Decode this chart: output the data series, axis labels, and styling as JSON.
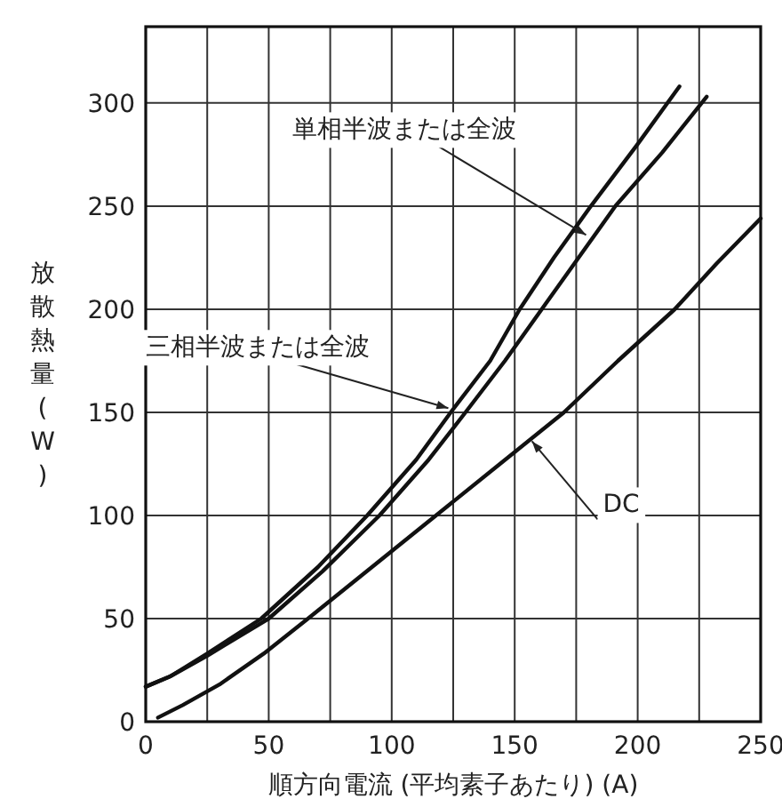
{
  "chart_data": {
    "type": "line",
    "xlabel": "順方向電流 (平均素子あたり) (A)",
    "ylabel": "放散熱量(W)",
    "xlim": [
      0,
      250
    ],
    "ylim": [
      0,
      337
    ],
    "xticks": [
      0,
      {
        "value": 25,
        "label": null
      },
      50,
      {
        "value": 75,
        "label": null
      },
      100,
      {
        "value": 125,
        "label": null
      },
      150,
      {
        "value": 175,
        "label": null
      },
      200,
      {
        "value": 225,
        "label": null
      },
      250
    ],
    "yticks": [
      0,
      50,
      100,
      150,
      200,
      250,
      300
    ],
    "grid": true,
    "series": [
      {
        "color": "#111111",
        "x": [
          0,
          10,
          25,
          47,
          70,
          90,
          110,
          124,
          140,
          152,
          166,
          181,
          200,
          217
        ],
        "values": [
          17,
          22,
          33,
          50,
          75,
          100,
          127,
          150,
          175,
          200,
          225,
          250,
          280,
          308
        ]
      },
      {
        "color": "#111111",
        "x": [
          0,
          10,
          25,
          50,
          72,
          95,
          115,
          130,
          146,
          161,
          176,
          191,
          210,
          228
        ],
        "values": [
          17,
          22,
          32,
          50,
          73,
          100,
          127,
          150,
          175,
          200,
          225,
          250,
          276,
          303
        ]
      },
      {
        "color": "#111111",
        "x": [
          5,
          15,
          30,
          48,
          66,
          92,
          118,
          144,
          170,
          192,
          215,
          232,
          250
        ],
        "values": [
          2,
          8,
          18,
          33,
          50,
          75,
          100,
          125,
          150,
          175,
          200,
          222,
          244
        ]
      }
    ],
    "annotations": [
      {
        "text": "単相半波または全波",
        "x": 179,
        "y": 236
      },
      {
        "text": "三相半波または全波",
        "x": 123,
        "y": 152
      },
      {
        "text": "DC",
        "x": 157,
        "y": 136
      }
    ]
  }
}
